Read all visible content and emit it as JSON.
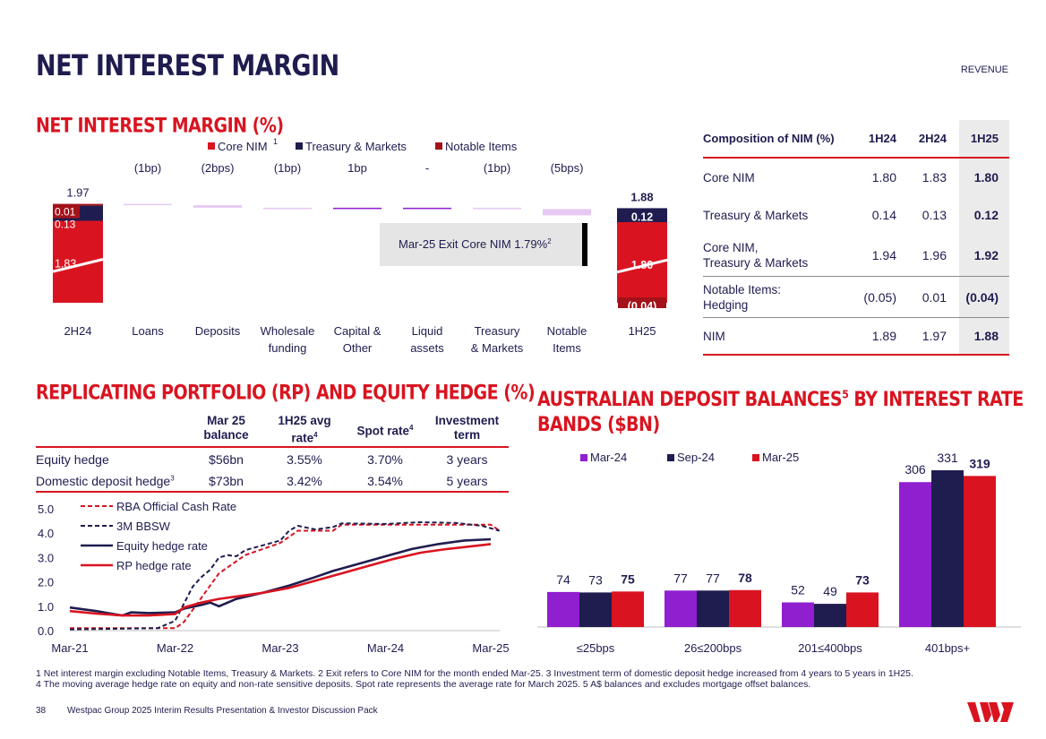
{
  "page": {
    "title": "NET INTEREST MARGIN",
    "section": "REVENUE",
    "page_number": "38",
    "footer_text": "Westpac Group 2025 Interim Results Presentation & Investor Discussion Pack",
    "logo_text": "W"
  },
  "nim_chart": {
    "heading": "NET INTEREST MARGIN (%)",
    "legend": [
      {
        "label": "Core NIM",
        "sup": "1",
        "color": "#d91420"
      },
      {
        "label": "Treasury & Markets",
        "color": "#1f1c4f"
      },
      {
        "label": "Notable Items",
        "color": "#a3121a"
      }
    ],
    "callout": "Mar-25 Exit Core NIM 1.79%",
    "callout_sup": "2",
    "chart_data": {
      "type": "waterfall",
      "title": "NET INTEREST MARGIN (%)",
      "start": {
        "label": "2H24",
        "total": "1.97",
        "core": 1.83,
        "core_label": "1.83",
        "tm": 0.13,
        "tm_label": "0.13",
        "notable": 0.01,
        "notable_label": "0.01"
      },
      "steps": [
        {
          "label": "Loans",
          "label2": "",
          "change": "(1bp)",
          "bps": -1
        },
        {
          "label": "Deposits",
          "label2": "",
          "change": "(2bps)",
          "bps": -2
        },
        {
          "label": "Wholesale",
          "label2": "funding",
          "change": "(1bp)",
          "bps": -1
        },
        {
          "label": "Capital &",
          "label2": "Other",
          "change": "1bp",
          "bps": 1
        },
        {
          "label": "Liquid",
          "label2": "assets",
          "change": "-",
          "bps": 0
        },
        {
          "label": "Treasury",
          "label2": "& Markets",
          "change": "(1bp)",
          "bps": -1
        },
        {
          "label": "Notable",
          "label2": "Items",
          "change": "(5bps)",
          "bps": -5
        }
      ],
      "end": {
        "label": "1H25",
        "total": "1.88",
        "core": 1.8,
        "core_label": "1.80",
        "tm": 0.12,
        "tm_label": "0.12",
        "notable": -0.04,
        "notable_label": "(0.04)"
      }
    }
  },
  "composition_table": {
    "headers": [
      "Composition of NIM (%)",
      "1H24",
      "2H24",
      "1H25"
    ],
    "rows": [
      {
        "label": "Core NIM",
        "label2": "",
        "v1": "1.80",
        "v2": "1.83",
        "v3": "1.80"
      },
      {
        "label": "Treasury & Markets",
        "label2": "",
        "v1": "0.14",
        "v2": "0.13",
        "v3": "0.12"
      },
      {
        "label": "Core NIM,",
        "label2": "Treasury & Markets",
        "v1": "1.94",
        "v2": "1.96",
        "v3": "1.92"
      },
      {
        "label": "Notable Items:",
        "label2": "Hedging",
        "v1": "(0.05)",
        "v2": "0.01",
        "v3": "(0.04)"
      },
      {
        "label": "NIM",
        "label2": "",
        "v1": "1.89",
        "v2": "1.97",
        "v3": "1.88"
      }
    ]
  },
  "rp_section": {
    "heading": "REPLICATING PORTFOLIO (RP) AND EQUITY HEDGE (%)",
    "table": {
      "headers": [
        {
          "l1": "",
          "l2": ""
        },
        {
          "l1": "Mar 25",
          "l2": "balance",
          "sup": ""
        },
        {
          "l1": "1H25 avg",
          "l2": "rate",
          "sup": "4"
        },
        {
          "l1": "Spot rate",
          "l2": "",
          "sup": "4"
        },
        {
          "l1": "Investment",
          "l2": "term"
        }
      ],
      "rows": [
        {
          "label": "Equity hedge",
          "sup": "",
          "balance": "$56bn",
          "avg": "3.55%",
          "spot": "3.70%",
          "term": "3 years"
        },
        {
          "label": "Domestic deposit hedge",
          "sup": "3",
          "balance": "$73bn",
          "avg": "3.42%",
          "spot": "3.54%",
          "term": "5 years"
        }
      ]
    },
    "chart_data": {
      "type": "line",
      "x_ticks": [
        "Mar-21",
        "Mar-22",
        "Mar-23",
        "Mar-24",
        "Mar-25"
      ],
      "y_ticks": [
        "0.0",
        "1.0",
        "2.0",
        "3.0",
        "4.0",
        "5.0"
      ],
      "ylim": [
        0,
        5
      ],
      "x_range": [
        0,
        48
      ],
      "series": [
        {
          "name": "RBA Official Cash Rate",
          "color": "#d91420",
          "dashed": true,
          "points": [
            [
              0,
              0.1
            ],
            [
              12,
              0.1
            ],
            [
              13,
              0.35
            ],
            [
              14,
              0.85
            ],
            [
              15,
              1.35
            ],
            [
              16,
              1.85
            ],
            [
              17,
              2.35
            ],
            [
              18,
              2.6
            ],
            [
              19,
              2.85
            ],
            [
              20,
              3.1
            ],
            [
              22,
              3.35
            ],
            [
              24,
              3.6
            ],
            [
              26,
              4.1
            ],
            [
              28,
              4.1
            ],
            [
              30,
              4.1
            ],
            [
              31,
              4.35
            ],
            [
              48,
              4.35
            ],
            [
              49,
              4.1
            ]
          ]
        },
        {
          "name": "3M BBSW",
          "color": "#1f1c4f",
          "dashed": true,
          "points": [
            [
              0,
              0.05
            ],
            [
              10,
              0.1
            ],
            [
              12,
              0.4
            ],
            [
              13,
              1.1
            ],
            [
              14,
              1.8
            ],
            [
              15,
              2.2
            ],
            [
              16,
              2.5
            ],
            [
              17,
              3.0
            ],
            [
              18,
              3.1
            ],
            [
              19,
              3.05
            ],
            [
              20,
              3.3
            ],
            [
              22,
              3.5
            ],
            [
              24,
              3.7
            ],
            [
              25,
              4.1
            ],
            [
              26,
              4.3
            ],
            [
              28,
              4.15
            ],
            [
              30,
              4.25
            ],
            [
              31,
              4.4
            ],
            [
              36,
              4.38
            ],
            [
              40,
              4.45
            ],
            [
              44,
              4.42
            ],
            [
              47,
              4.3
            ],
            [
              49,
              4.1
            ]
          ]
        },
        {
          "name": "Equity hedge rate",
          "color": "#1f1c4f",
          "dashed": false,
          "points": [
            [
              0,
              0.95
            ],
            [
              3,
              0.8
            ],
            [
              5,
              0.68
            ],
            [
              6,
              0.62
            ],
            [
              7,
              0.75
            ],
            [
              9,
              0.72
            ],
            [
              12,
              0.75
            ],
            [
              13,
              0.9
            ],
            [
              15,
              1.05
            ],
            [
              16,
              1.15
            ],
            [
              17,
              1.0
            ],
            [
              18,
              1.15
            ],
            [
              19,
              1.3
            ],
            [
              22,
              1.55
            ],
            [
              25,
              1.85
            ],
            [
              28,
              2.2
            ],
            [
              30,
              2.45
            ],
            [
              33,
              2.75
            ],
            [
              36,
              3.05
            ],
            [
              39,
              3.35
            ],
            [
              42,
              3.55
            ],
            [
              45,
              3.7
            ],
            [
              48,
              3.75
            ]
          ]
        },
        {
          "name": "RP hedge rate",
          "color": "#d91420",
          "dashed": false,
          "points": [
            [
              0,
              0.8
            ],
            [
              3,
              0.7
            ],
            [
              6,
              0.62
            ],
            [
              9,
              0.62
            ],
            [
              12,
              0.68
            ],
            [
              13,
              0.95
            ],
            [
              15,
              1.15
            ],
            [
              17,
              1.3
            ],
            [
              19,
              1.4
            ],
            [
              22,
              1.55
            ],
            [
              25,
              1.75
            ],
            [
              28,
              2.05
            ],
            [
              31,
              2.35
            ],
            [
              34,
              2.65
            ],
            [
              37,
              2.95
            ],
            [
              40,
              3.2
            ],
            [
              43,
              3.35
            ],
            [
              48,
              3.55
            ]
          ]
        }
      ]
    }
  },
  "deposit_section": {
    "heading_l1": "AUSTRALIAN DEPOSIT BALANCES",
    "heading_sup": "5",
    "heading_l1b": " BY INTEREST RATE",
    "heading_l2": "BANDS ($BN)",
    "chart_data": {
      "type": "bar",
      "categories": [
        "≤25bps",
        "26≤200bps",
        "201≤400bps",
        "401bps+"
      ],
      "ylim": [
        0,
        331
      ],
      "series": [
        {
          "name": "Mar-24",
          "color": "#8f1fcf",
          "values": [
            74,
            77,
            52,
            306
          ],
          "bold": false
        },
        {
          "name": "Sep-24",
          "color": "#1f1c4f",
          "values": [
            73,
            77,
            49,
            331
          ],
          "bold": false
        },
        {
          "name": "Mar-25",
          "color": "#d91420",
          "values": [
            75,
            78,
            73,
            319
          ],
          "bold": true
        }
      ]
    }
  },
  "footnotes": {
    "line1": "1 Net interest margin excluding Notable Items, Treasury & Markets. 2 Exit refers to Core NIM for the month ended Mar-25. 3 Investment term of domestic deposit hedge increased from 4 years to 5 years in 1H25.",
    "line2": "4 The moving average hedge rate on equity and non-rate sensitive deposits. Spot rate represents the average rate for March 2025. 5 A$ balances and excludes mortgage offset balances."
  }
}
